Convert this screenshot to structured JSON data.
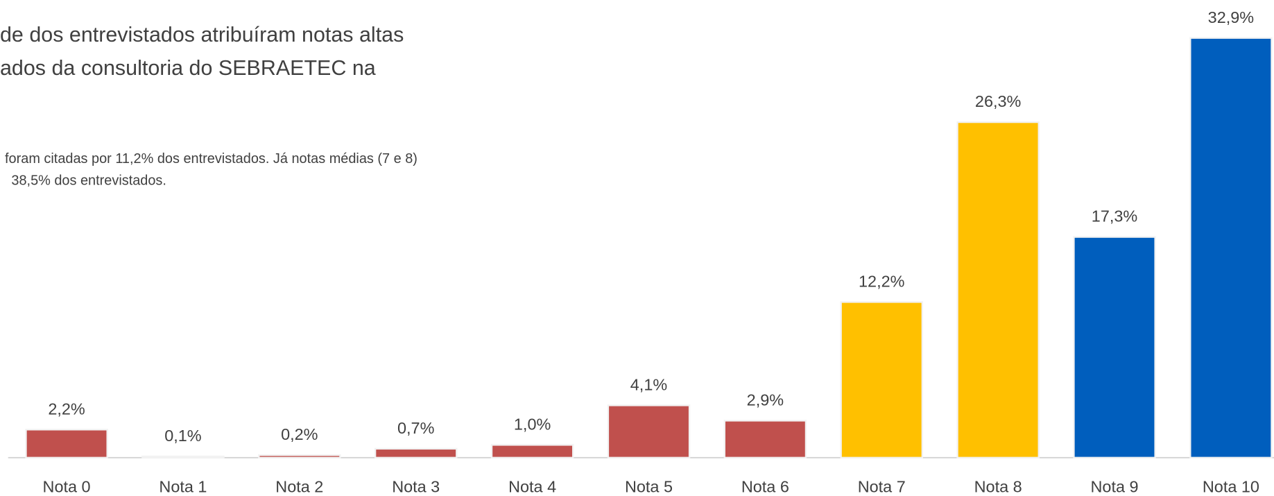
{
  "chart_data": {
    "type": "bar",
    "title_lines": [
      "de dos entrevistados atribuíram notas altas",
      "ados da consultoria do SEBRAETEC na"
    ],
    "subtitle_lines": [
      "foram citadas por 11,2% dos entrevistados. Já notas médias (7 e 8)",
      "38,5% dos entrevistados."
    ],
    "categories": [
      "Nota 0",
      "Nota 1",
      "Nota 2",
      "Nota 3",
      "Nota 4",
      "Nota 5",
      "Nota 6",
      "Nota 7",
      "Nota 8",
      "Nota 9",
      "Nota 10"
    ],
    "values": [
      2.2,
      0.1,
      0.2,
      0.7,
      1.0,
      4.1,
      2.9,
      12.2,
      26.3,
      17.3,
      32.9
    ],
    "value_labels": [
      "2,2%",
      "0,1%",
      "0,2%",
      "0,7%",
      "1,0%",
      "4,1%",
      "2,9%",
      "12,2%",
      "26,3%",
      "17,3%",
      "32,9%"
    ],
    "colors": [
      "#c0504d",
      "#c0504d",
      "#c0504d",
      "#c0504d",
      "#c0504d",
      "#c0504d",
      "#c0504d",
      "#ffc000",
      "#ffc000",
      "#005ebd",
      "#005ebd"
    ],
    "ylim": [
      0,
      33
    ]
  }
}
